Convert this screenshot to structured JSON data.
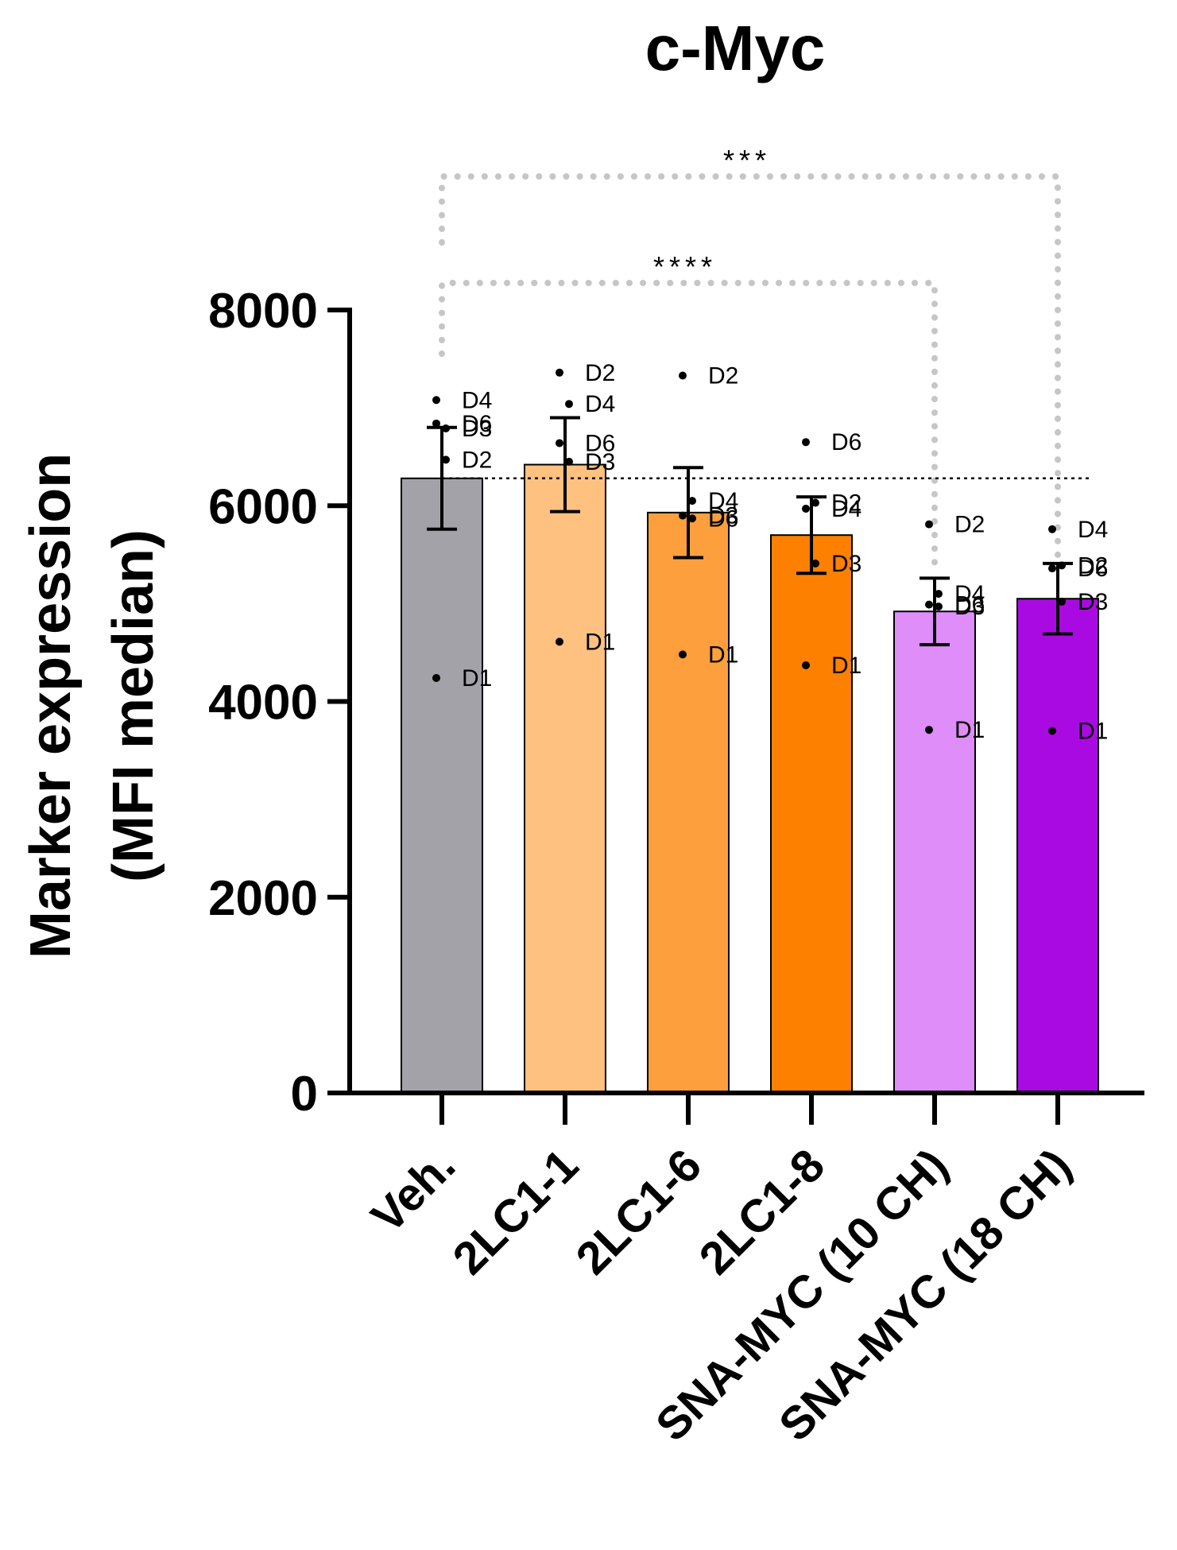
{
  "chart_data": {
    "type": "bar",
    "title": "c-Myc",
    "ylabel_line1": "Marker expression",
    "ylabel_line2": "(MFI median)",
    "xlabel": "",
    "ylim": [
      0,
      8000
    ],
    "yticks": [
      0,
      2000,
      4000,
      6000,
      8000
    ],
    "reference_line": 6280,
    "categories": [
      "Veh.",
      "2LC1-1",
      "2LC1-6",
      "2LC1-8",
      "SNA-MYC (10 CH)",
      "SNA-MYC (18 CH)"
    ],
    "values": [
      6280,
      6420,
      5930,
      5700,
      4920,
      5050
    ],
    "errors": [
      520,
      480,
      460,
      390,
      340,
      360
    ],
    "colors": [
      "#a3a2a8",
      "#fec17f",
      "#fd9f3d",
      "#fd8001",
      "#df8df9",
      "#aa0ae2"
    ],
    "points": [
      [
        {
          "label": "D4",
          "value": 7080
        },
        {
          "label": "D3",
          "value": 6790
        },
        {
          "label": "D6",
          "value": 6840
        },
        {
          "label": "D2",
          "value": 6470
        },
        {
          "label": "D1",
          "value": 4240
        }
      ],
      [
        {
          "label": "D2",
          "value": 7360
        },
        {
          "label": "D4",
          "value": 7040
        },
        {
          "label": "D6",
          "value": 6640
        },
        {
          "label": "D3",
          "value": 6450
        },
        {
          "label": "D1",
          "value": 4610
        }
      ],
      [
        {
          "label": "D2",
          "value": 7330
        },
        {
          "label": "D4",
          "value": 6050
        },
        {
          "label": "D3",
          "value": 5900
        },
        {
          "label": "D6",
          "value": 5870
        },
        {
          "label": "D1",
          "value": 4480
        }
      ],
      [
        {
          "label": "D6",
          "value": 6650
        },
        {
          "label": "D2",
          "value": 6030
        },
        {
          "label": "D4",
          "value": 5970
        },
        {
          "label": "D3",
          "value": 5410
        },
        {
          "label": "D1",
          "value": 4370
        }
      ],
      [
        {
          "label": "D2",
          "value": 5810
        },
        {
          "label": "D4",
          "value": 5100
        },
        {
          "label": "D6",
          "value": 4990
        },
        {
          "label": "D3",
          "value": 4970
        },
        {
          "label": "D1",
          "value": 3710
        }
      ],
      [
        {
          "label": "D4",
          "value": 5760
        },
        {
          "label": "D2",
          "value": 5390
        },
        {
          "label": "D6",
          "value": 5360
        },
        {
          "label": "D3",
          "value": 5020
        },
        {
          "label": "D1",
          "value": 3700
        }
      ]
    ],
    "significance": [
      {
        "from": 0,
        "to": 5,
        "label": "***"
      },
      {
        "from": 0,
        "to": 4,
        "label": "****"
      }
    ]
  }
}
